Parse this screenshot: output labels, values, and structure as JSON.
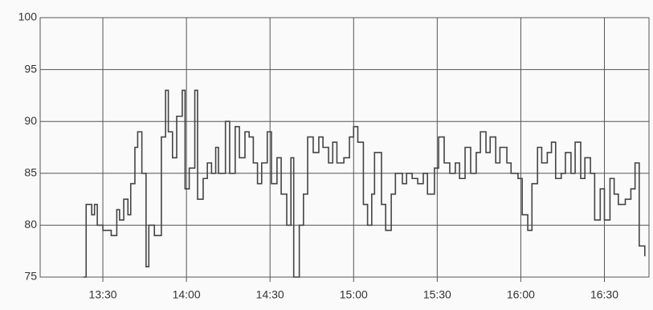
{
  "chart_data": {
    "type": "line",
    "step": true,
    "color": "#444444",
    "grid": true,
    "series": [
      {
        "color": "#444444",
        "x": [
          803,
          804,
          806,
          807,
          808,
          810,
          813,
          815,
          816,
          817.5,
          819,
          820,
          821.5,
          822.5,
          824,
          825.5,
          826.5,
          828.5,
          831,
          832.5,
          833.5,
          835,
          836.5,
          838.5,
          839.5,
          841,
          843,
          844,
          846,
          847.5,
          849,
          850.5,
          851.5,
          854,
          855.5,
          857.5,
          859,
          861,
          862.5,
          864,
          865.5,
          867,
          869,
          870.5,
          872.5,
          874,
          876,
          877.5,
          878.5,
          880.5,
          882,
          883.5,
          885.5,
          887.5,
          889,
          891,
          892.5,
          894,
          896.5,
          898.5,
          900,
          901.5,
          903.5,
          905,
          906.5,
          907.5,
          910,
          911.5,
          913.5,
          915,
          917.5,
          919,
          921,
          923,
          925,
          926.5,
          929,
          930.5,
          932.5,
          934.5,
          936.5,
          938,
          940,
          942,
          944,
          945.5,
          947.5,
          949,
          951,
          952.5,
          955,
          956.5,
          959,
          960.5,
          962.5,
          964,
          966,
          967.5,
          969.5,
          971,
          972.5,
          974.5,
          976,
          978,
          979.5,
          981.5,
          983,
          985,
          986.5,
          988.5,
          990,
          992,
          993.5,
          995,
          997.5,
          999.5,
          1001,
          1002.5,
          1004.5
        ],
        "values": [
          75,
          82,
          81,
          82,
          80,
          79.5,
          79,
          81.5,
          80.5,
          82.5,
          81,
          84,
          87.5,
          89,
          85,
          76,
          80,
          79,
          88.5,
          93,
          89,
          86.5,
          90.5,
          93,
          83.5,
          85.5,
          93,
          82.5,
          84.5,
          86,
          85,
          87.5,
          85,
          90,
          85,
          89.5,
          86.5,
          89,
          88.5,
          86,
          84,
          86,
          89,
          84,
          86.5,
          83,
          80,
          86.5,
          75,
          80,
          83,
          88.5,
          87,
          88.5,
          87.5,
          86,
          88,
          86,
          86.5,
          88.5,
          89.5,
          88,
          82,
          80,
          83,
          87,
          82,
          79.5,
          83,
          85,
          84,
          85,
          84.5,
          84,
          85,
          83,
          85.5,
          88.5,
          86,
          85,
          86,
          84.5,
          87.5,
          85,
          87,
          89,
          87,
          88.5,
          86,
          87.5,
          86,
          85,
          84.5,
          81,
          79.5,
          84,
          87.5,
          86,
          87,
          88,
          84.5,
          85,
          87,
          85,
          88,
          84.5,
          86.5,
          85,
          80.5,
          83.5,
          80.5,
          84.5,
          83,
          82,
          82.5,
          83.5,
          86,
          78,
          77
        ]
      }
    ],
    "xlim": [
      787.5,
      1006
    ],
    "ylim": [
      75,
      100
    ],
    "xticks": [
      {
        "value": 810,
        "label": "13:30"
      },
      {
        "value": 840,
        "label": "14:00"
      },
      {
        "value": 870,
        "label": "14:30"
      },
      {
        "value": 900,
        "label": "15:00"
      },
      {
        "value": 930,
        "label": "15:30"
      },
      {
        "value": 960,
        "label": "16:00"
      },
      {
        "value": 990,
        "label": "16:30"
      }
    ],
    "yticks": [
      75,
      80,
      85,
      90,
      95,
      100
    ]
  }
}
